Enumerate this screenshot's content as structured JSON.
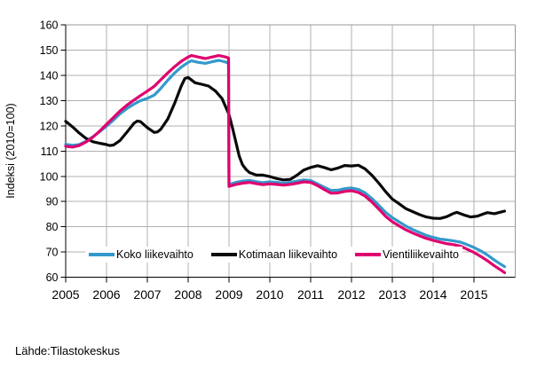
{
  "chart_data": {
    "type": "line",
    "title": "",
    "xlabel": "",
    "ylabel": "Indeksi (2010=100)",
    "source_note": "Lähde:Tilastokeskus",
    "xlim": [
      2005,
      2016.04
    ],
    "ylim": [
      60,
      160
    ],
    "x_ticks": [
      2005,
      2006,
      2007,
      2008,
      2009,
      2010,
      2011,
      2012,
      2013,
      2014,
      2015
    ],
    "y_ticks": [
      60,
      70,
      80,
      90,
      100,
      110,
      120,
      130,
      140,
      150,
      160
    ],
    "grid": true,
    "legend_position": "inside-bottom",
    "series": [
      {
        "name": "Koko liikevaihto",
        "color": "#3399cc",
        "points": [
          [
            2005.0,
            112.7
          ],
          [
            2005.17,
            112.3
          ],
          [
            2005.33,
            112.6
          ],
          [
            2005.5,
            113.9
          ],
          [
            2005.67,
            115.7
          ],
          [
            2005.83,
            117.7
          ],
          [
            2006.0,
            119.9
          ],
          [
            2006.17,
            122.3
          ],
          [
            2006.33,
            124.8
          ],
          [
            2006.5,
            126.9
          ],
          [
            2006.67,
            128.6
          ],
          [
            2006.83,
            130.0
          ],
          [
            2007.0,
            130.9
          ],
          [
            2007.17,
            132.2
          ],
          [
            2007.33,
            134.9
          ],
          [
            2007.5,
            138.1
          ],
          [
            2007.67,
            141.0
          ],
          [
            2007.83,
            143.3
          ],
          [
            2008.0,
            145.2
          ],
          [
            2008.08,
            145.8
          ],
          [
            2008.25,
            145.2
          ],
          [
            2008.42,
            144.8
          ],
          [
            2008.58,
            145.4
          ],
          [
            2008.75,
            146.0
          ],
          [
            2008.92,
            145.3
          ],
          [
            2008.99,
            144.8
          ],
          [
            2009.0,
            96.8
          ],
          [
            2009.17,
            97.6
          ],
          [
            2009.33,
            98.1
          ],
          [
            2009.5,
            98.4
          ],
          [
            2009.67,
            97.9
          ],
          [
            2009.83,
            97.5
          ],
          [
            2010.0,
            97.8
          ],
          [
            2010.17,
            97.6
          ],
          [
            2010.33,
            97.3
          ],
          [
            2010.5,
            97.6
          ],
          [
            2010.67,
            98.1
          ],
          [
            2010.83,
            98.6
          ],
          [
            2011.0,
            98.3
          ],
          [
            2011.17,
            97.0
          ],
          [
            2011.33,
            95.7
          ],
          [
            2011.5,
            94.4
          ],
          [
            2011.67,
            94.5
          ],
          [
            2011.83,
            95.1
          ],
          [
            2012.0,
            95.4
          ],
          [
            2012.17,
            94.8
          ],
          [
            2012.33,
            93.5
          ],
          [
            2012.5,
            91.2
          ],
          [
            2012.67,
            88.5
          ],
          [
            2012.83,
            85.8
          ],
          [
            2013.0,
            83.6
          ],
          [
            2013.17,
            81.9
          ],
          [
            2013.33,
            80.3
          ],
          [
            2013.5,
            78.9
          ],
          [
            2013.67,
            77.7
          ],
          [
            2013.83,
            76.6
          ],
          [
            2014.0,
            75.8
          ],
          [
            2014.17,
            75.1
          ],
          [
            2014.33,
            74.8
          ],
          [
            2014.5,
            74.4
          ],
          [
            2014.67,
            73.9
          ],
          [
            2014.83,
            72.9
          ],
          [
            2015.0,
            71.8
          ],
          [
            2015.17,
            70.4
          ],
          [
            2015.33,
            68.8
          ],
          [
            2015.5,
            66.8
          ],
          [
            2015.67,
            65.0
          ],
          [
            2015.75,
            64.2
          ]
        ]
      },
      {
        "name": "Kotimaan liikevaihto",
        "color": "#0a0a0a",
        "points": [
          [
            2005.0,
            121.8
          ],
          [
            2005.17,
            119.6
          ],
          [
            2005.33,
            117.2
          ],
          [
            2005.5,
            115.0
          ],
          [
            2005.67,
            113.7
          ],
          [
            2005.83,
            113.1
          ],
          [
            2006.0,
            112.6
          ],
          [
            2006.08,
            112.2
          ],
          [
            2006.17,
            112.4
          ],
          [
            2006.33,
            114.2
          ],
          [
            2006.5,
            117.5
          ],
          [
            2006.67,
            121.0
          ],
          [
            2006.75,
            121.9
          ],
          [
            2006.83,
            121.7
          ],
          [
            2007.0,
            119.3
          ],
          [
            2007.17,
            117.4
          ],
          [
            2007.25,
            117.6
          ],
          [
            2007.33,
            118.7
          ],
          [
            2007.5,
            122.7
          ],
          [
            2007.67,
            129.0
          ],
          [
            2007.83,
            135.8
          ],
          [
            2007.92,
            138.8
          ],
          [
            2008.0,
            139.2
          ],
          [
            2008.17,
            137.1
          ],
          [
            2008.33,
            136.5
          ],
          [
            2008.5,
            135.8
          ],
          [
            2008.67,
            133.8
          ],
          [
            2008.83,
            130.8
          ],
          [
            2009.0,
            124.5
          ],
          [
            2009.08,
            119.5
          ],
          [
            2009.17,
            113.5
          ],
          [
            2009.25,
            108.0
          ],
          [
            2009.33,
            104.6
          ],
          [
            2009.42,
            102.7
          ],
          [
            2009.5,
            101.5
          ],
          [
            2009.67,
            100.5
          ],
          [
            2009.83,
            100.5
          ],
          [
            2010.0,
            99.9
          ],
          [
            2010.17,
            99.1
          ],
          [
            2010.33,
            98.6
          ],
          [
            2010.5,
            98.8
          ],
          [
            2010.67,
            100.5
          ],
          [
            2010.83,
            102.5
          ],
          [
            2011.0,
            103.5
          ],
          [
            2011.17,
            104.2
          ],
          [
            2011.33,
            103.5
          ],
          [
            2011.5,
            102.6
          ],
          [
            2011.67,
            103.3
          ],
          [
            2011.83,
            104.3
          ],
          [
            2012.0,
            104.1
          ],
          [
            2012.17,
            104.4
          ],
          [
            2012.33,
            103.0
          ],
          [
            2012.5,
            100.4
          ],
          [
            2012.67,
            97.3
          ],
          [
            2012.83,
            94.0
          ],
          [
            2013.0,
            91.0
          ],
          [
            2013.17,
            89.1
          ],
          [
            2013.33,
            87.2
          ],
          [
            2013.5,
            86.0
          ],
          [
            2013.67,
            84.8
          ],
          [
            2013.83,
            83.9
          ],
          [
            2014.0,
            83.4
          ],
          [
            2014.17,
            83.3
          ],
          [
            2014.33,
            84.0
          ],
          [
            2014.5,
            85.3
          ],
          [
            2014.58,
            85.7
          ],
          [
            2014.75,
            84.7
          ],
          [
            2014.92,
            83.9
          ],
          [
            2015.08,
            84.2
          ],
          [
            2015.25,
            85.2
          ],
          [
            2015.33,
            85.6
          ],
          [
            2015.5,
            85.2
          ],
          [
            2015.67,
            85.9
          ],
          [
            2015.75,
            86.2
          ]
        ]
      },
      {
        "name": "Vientiliikevaihto",
        "color": "#e0006e",
        "points": [
          [
            2005.0,
            111.9
          ],
          [
            2005.17,
            111.6
          ],
          [
            2005.33,
            112.2
          ],
          [
            2005.5,
            113.6
          ],
          [
            2005.67,
            115.6
          ],
          [
            2005.83,
            117.9
          ],
          [
            2006.0,
            120.6
          ],
          [
            2006.17,
            123.3
          ],
          [
            2006.33,
            125.9
          ],
          [
            2006.5,
            128.2
          ],
          [
            2006.67,
            130.2
          ],
          [
            2006.83,
            132.0
          ],
          [
            2007.0,
            133.8
          ],
          [
            2007.17,
            135.7
          ],
          [
            2007.33,
            138.3
          ],
          [
            2007.5,
            141.0
          ],
          [
            2007.67,
            143.5
          ],
          [
            2007.83,
            145.6
          ],
          [
            2008.0,
            147.3
          ],
          [
            2008.08,
            147.9
          ],
          [
            2008.25,
            147.3
          ],
          [
            2008.42,
            146.7
          ],
          [
            2008.58,
            147.3
          ],
          [
            2008.75,
            147.9
          ],
          [
            2008.92,
            147.3
          ],
          [
            2008.99,
            146.9
          ],
          [
            2009.0,
            96.0
          ],
          [
            2009.17,
            96.8
          ],
          [
            2009.33,
            97.3
          ],
          [
            2009.5,
            97.6
          ],
          [
            2009.67,
            97.1
          ],
          [
            2009.83,
            96.7
          ],
          [
            2010.0,
            97.0
          ],
          [
            2010.17,
            96.8
          ],
          [
            2010.33,
            96.5
          ],
          [
            2010.5,
            96.8
          ],
          [
            2010.67,
            97.3
          ],
          [
            2010.83,
            97.8
          ],
          [
            2011.0,
            97.6
          ],
          [
            2011.17,
            96.3
          ],
          [
            2011.33,
            94.8
          ],
          [
            2011.5,
            93.3
          ],
          [
            2011.67,
            93.4
          ],
          [
            2011.83,
            94.0
          ],
          [
            2012.0,
            94.3
          ],
          [
            2012.17,
            93.6
          ],
          [
            2012.33,
            92.2
          ],
          [
            2012.5,
            89.8
          ],
          [
            2012.67,
            87.0
          ],
          [
            2012.83,
            84.2
          ],
          [
            2013.0,
            82.0
          ],
          [
            2013.17,
            80.3
          ],
          [
            2013.33,
            78.8
          ],
          [
            2013.5,
            77.5
          ],
          [
            2013.67,
            76.4
          ],
          [
            2013.83,
            75.4
          ],
          [
            2014.0,
            74.6
          ],
          [
            2014.17,
            73.9
          ],
          [
            2014.33,
            73.3
          ],
          [
            2014.5,
            72.9
          ],
          [
            2014.67,
            72.3
          ],
          [
            2014.83,
            71.1
          ],
          [
            2015.0,
            69.8
          ],
          [
            2015.17,
            68.2
          ],
          [
            2015.33,
            66.5
          ],
          [
            2015.5,
            64.5
          ],
          [
            2015.67,
            62.7
          ],
          [
            2015.75,
            61.8
          ]
        ]
      }
    ]
  }
}
